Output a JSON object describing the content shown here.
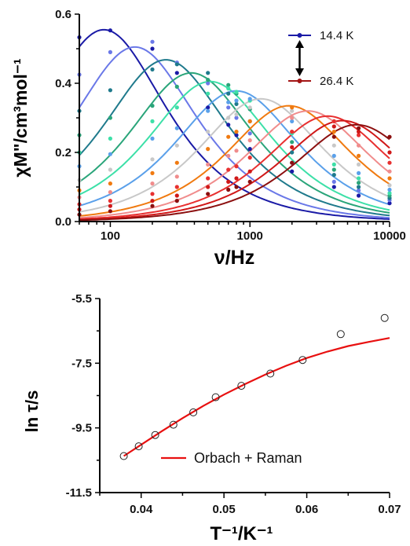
{
  "chart_data": [
    {
      "type": "scatter",
      "panel": "top",
      "xscale": "log",
      "xlim": [
        60,
        10000
      ],
      "ylim": [
        0,
        0.6
      ],
      "xticks": [
        "100",
        "1000",
        "10000"
      ],
      "yticks": [
        "0.0",
        "0.2",
        "0.4",
        "0.6"
      ],
      "xlabel": "ν/Hz",
      "ylabel": "χM\"/cm³mol⁻¹",
      "legend": [
        {
          "label": "14.4 K",
          "color": "#1a1aa6"
        },
        {
          "label": "26.4 K",
          "color": "#a31515"
        }
      ],
      "legend_position": "top-right",
      "x": [
        60,
        100,
        200,
        300,
        500,
        700,
        800,
        1000,
        2000,
        4000,
        6000,
        10000
      ],
      "series": [
        {
          "color": "#1a1aa6",
          "peak_hz": 90,
          "peak_val": 0.555,
          "values": [
            0.533,
            0.553,
            0.5,
            0.43,
            0.33,
            0.28,
            0.25,
            0.21,
            0.145,
            0.1,
            0.075,
            0.053
          ]
        },
        {
          "color": "#6a78e8",
          "peak_hz": 150,
          "peak_val": 0.505,
          "values": [
            0.425,
            0.49,
            0.52,
            0.46,
            0.4,
            0.33,
            0.3,
            0.255,
            0.17,
            0.115,
            0.09,
            0.062
          ]
        },
        {
          "color": "#1f7a8c",
          "peak_hz": 250,
          "peak_val": 0.468,
          "values": [
            0.32,
            0.38,
            0.44,
            0.455,
            0.43,
            0.37,
            0.34,
            0.29,
            0.2,
            0.135,
            0.1,
            0.068
          ]
        },
        {
          "color": "#2aa57a",
          "peak_hz": 380,
          "peak_val": 0.43,
          "values": [
            0.25,
            0.3,
            0.335,
            0.39,
            0.41,
            0.395,
            0.37,
            0.325,
            0.23,
            0.15,
            0.112,
            0.075
          ]
        },
        {
          "color": "#3de0a8",
          "peak_hz": 520,
          "peak_val": 0.405,
          "values": [
            0.2,
            0.24,
            0.29,
            0.33,
            0.37,
            0.385,
            0.375,
            0.35,
            0.255,
            0.165,
            0.125,
            0.082
          ]
        },
        {
          "color": "#5aa0ea",
          "peak_hz": 800,
          "peak_val": 0.378,
          "values": [
            0.16,
            0.195,
            0.24,
            0.27,
            0.32,
            0.345,
            0.35,
            0.355,
            0.29,
            0.19,
            0.14,
            0.092
          ]
        },
        {
          "color": "#c8c8c8",
          "peak_hz": 1200,
          "peak_val": 0.355,
          "values": [
            0.12,
            0.15,
            0.18,
            0.22,
            0.26,
            0.3,
            0.31,
            0.33,
            0.32,
            0.22,
            0.165,
            0.105
          ]
        },
        {
          "color": "#f07a10",
          "peak_hz": 1900,
          "peak_val": 0.335,
          "values": [
            0.09,
            0.11,
            0.14,
            0.17,
            0.21,
            0.245,
            0.26,
            0.29,
            0.33,
            0.26,
            0.19,
            0.125
          ]
        },
        {
          "color": "#f08c8c",
          "peak_hz": 2600,
          "peak_val": 0.32,
          "values": [
            0.07,
            0.085,
            0.11,
            0.13,
            0.165,
            0.19,
            0.205,
            0.235,
            0.3,
            0.29,
            0.22,
            0.145
          ]
        },
        {
          "color": "#e83030",
          "peak_hz": 3600,
          "peak_val": 0.305,
          "values": [
            0.05,
            0.06,
            0.08,
            0.1,
            0.125,
            0.15,
            0.16,
            0.185,
            0.26,
            0.29,
            0.25,
            0.17
          ]
        },
        {
          "color": "#d01818",
          "peak_hz": 4600,
          "peak_val": 0.292,
          "values": [
            0.035,
            0.045,
            0.06,
            0.075,
            0.1,
            0.115,
            0.125,
            0.145,
            0.215,
            0.275,
            0.26,
            0.2
          ]
        },
        {
          "color": "#8b0f0f",
          "peak_hz": 5800,
          "peak_val": 0.28,
          "values": [
            0.02,
            0.03,
            0.045,
            0.06,
            0.08,
            0.092,
            0.1,
            0.115,
            0.17,
            0.245,
            0.27,
            0.245
          ]
        }
      ]
    },
    {
      "type": "scatter",
      "panel": "bottom",
      "xlim": [
        0.035,
        0.07
      ],
      "ylim": [
        -11.5,
        -5.5
      ],
      "xticks": [
        "0.04",
        "0.05",
        "0.06",
        "0.07"
      ],
      "yticks": [
        "-5.5",
        "-7.5",
        "-9.5",
        "-11.5"
      ],
      "xlabel": "T⁻¹/K⁻¹",
      "ylabel": "ln τ/s",
      "legend": [
        {
          "label": "Orbach + Raman",
          "color": "#e81010"
        }
      ],
      "legend_position": "bottom-right",
      "points": {
        "x": [
          0.0379,
          0.0397,
          0.0417,
          0.0439,
          0.0463,
          0.049,
          0.0521,
          0.0556,
          0.0595,
          0.0641,
          0.0694
        ],
        "y": [
          -10.37,
          -10.07,
          -9.72,
          -9.4,
          -9.02,
          -8.55,
          -8.2,
          -7.82,
          -7.4,
          -6.6,
          -6.1
        ]
      },
      "fit": {
        "x": [
          0.0379,
          0.04,
          0.0425,
          0.045,
          0.0475,
          0.05,
          0.0525,
          0.055,
          0.0575,
          0.06,
          0.0625,
          0.065,
          0.0675,
          0.07
        ],
        "y": [
          -10.37,
          -10.02,
          -9.6,
          -9.2,
          -8.82,
          -8.47,
          -8.15,
          -7.85,
          -7.58,
          -7.34,
          -7.14,
          -6.97,
          -6.84,
          -6.72
        ]
      }
    }
  ]
}
